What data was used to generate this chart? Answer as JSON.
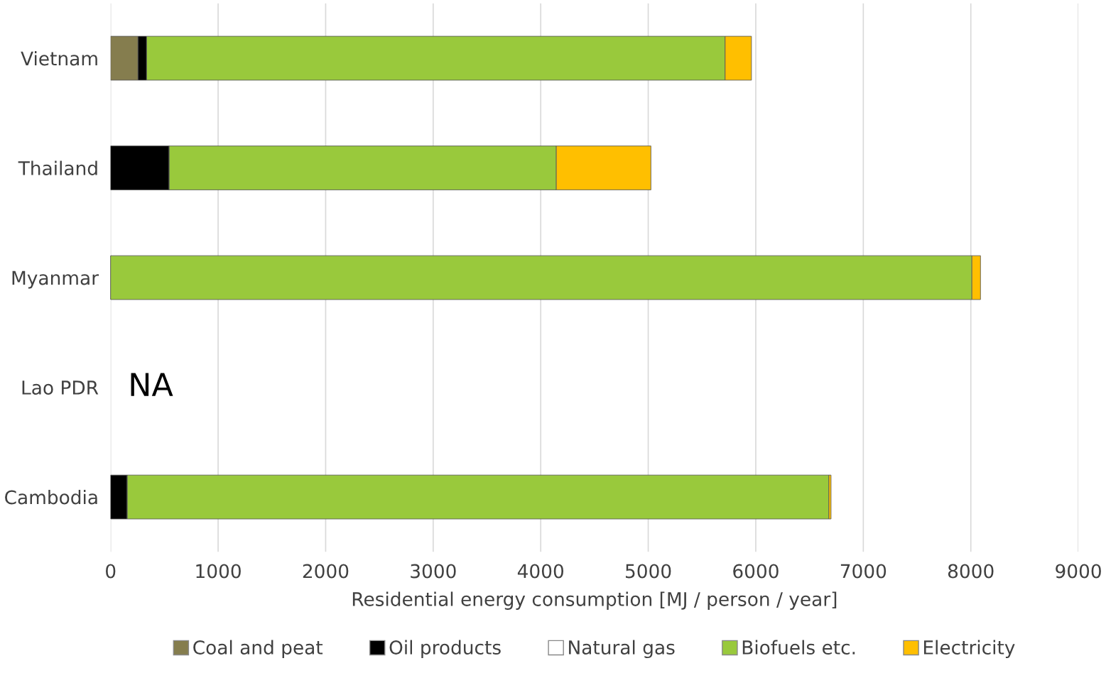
{
  "chart_data": {
    "type": "bar",
    "orientation": "horizontal",
    "stacked": true,
    "categories": [
      "Vietnam",
      "Thailand",
      "Myanmar",
      "Lao PDR",
      "Cambodia"
    ],
    "series": [
      {
        "name": "Coal and peat",
        "color": "#857d4e",
        "values": [
          255,
          0,
          0,
          null,
          0
        ]
      },
      {
        "name": "Oil products",
        "color": "#000000",
        "values": [
          80,
          545,
          0,
          null,
          155
        ]
      },
      {
        "name": "Natural gas",
        "color": "#ffffff",
        "values": [
          0,
          0,
          0,
          null,
          0
        ]
      },
      {
        "name": "Biofuels etc.",
        "color": "#99c93c",
        "values": [
          5380,
          3600,
          8010,
          null,
          6525
        ]
      },
      {
        "name": "Electricity",
        "color": "#ffbf00",
        "values": [
          245,
          880,
          80,
          null,
          20
        ]
      }
    ],
    "xlabel": "Residential energy consumption [MJ / person / year]",
    "xlim": [
      0,
      9000
    ],
    "xticks": [
      0,
      1000,
      2000,
      3000,
      4000,
      5000,
      6000,
      7000,
      8000,
      9000
    ],
    "grid": "x",
    "legend": "bottom",
    "annotations": [
      "NA"
    ]
  }
}
